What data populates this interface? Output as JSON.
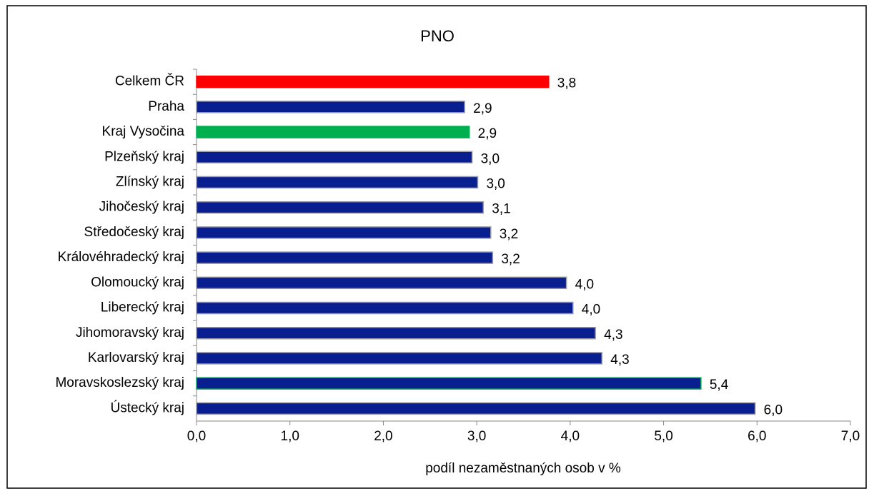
{
  "chart_data": {
    "type": "barh",
    "title": "PNO",
    "xlabel": "podíl nezaměstnaných osob v %",
    "categories": [
      "Celkem ČR",
      "Praha",
      "Kraj Vysočina",
      "Plzeňský kraj",
      "Zlínský kraj",
      "Jihočeský kraj",
      "Středočeský kraj",
      "Královéhradecký kraj",
      "Olomoucký kraj",
      "Liberecký kraj",
      "Jihomoravský kraj",
      "Karlovarský kraj",
      "Moravskoslezský kraj",
      "Ústecký kraj"
    ],
    "values": [
      3.77,
      2.87,
      2.92,
      2.95,
      3.01,
      3.07,
      3.15,
      3.17,
      3.96,
      4.03,
      4.27,
      4.34,
      5.4,
      5.98
    ],
    "value_labels": [
      "3,8",
      "2,9",
      "2,9",
      "3,0",
      "3,0",
      "3,1",
      "3,2",
      "3,2",
      "4,0",
      "4,0",
      "4,3",
      "4,3",
      "5,4",
      "6,0"
    ],
    "colors": [
      "#ff0000",
      "#0a1f8f",
      "#00b050",
      "#0a1f8f",
      "#0a1f8f",
      "#0a1f8f",
      "#0a1f8f",
      "#0a1f8f",
      "#0a1f8f",
      "#0a1f8f",
      "#0a1f8f",
      "#0a1f8f",
      "#0a1f8f",
      "#0a1f8f"
    ],
    "edgecolors": [
      "#ff0000",
      "#9a9aa8",
      "#00b050",
      "#9a9aa8",
      "#9a9aa8",
      "#9a9aa8",
      "#9a9aa8",
      "#9a9aa8",
      "#9a9aa8",
      "#9a9aa8",
      "#9a9aa8",
      "#9a9aa8",
      "#00b050",
      "#9a9aa8"
    ],
    "xlim": [
      0,
      7
    ],
    "xticks": [
      {
        "value": 0,
        "label": "0,0"
      },
      {
        "value": 1,
        "label": "1,0"
      },
      {
        "value": 2,
        "label": "2,0"
      },
      {
        "value": 3,
        "label": "3,0"
      },
      {
        "value": 4,
        "label": "4,0"
      },
      {
        "value": 5,
        "label": "5,0"
      },
      {
        "value": 6,
        "label": "6,0"
      },
      {
        "value": 7,
        "label": "7,0"
      }
    ],
    "grid": false
  }
}
